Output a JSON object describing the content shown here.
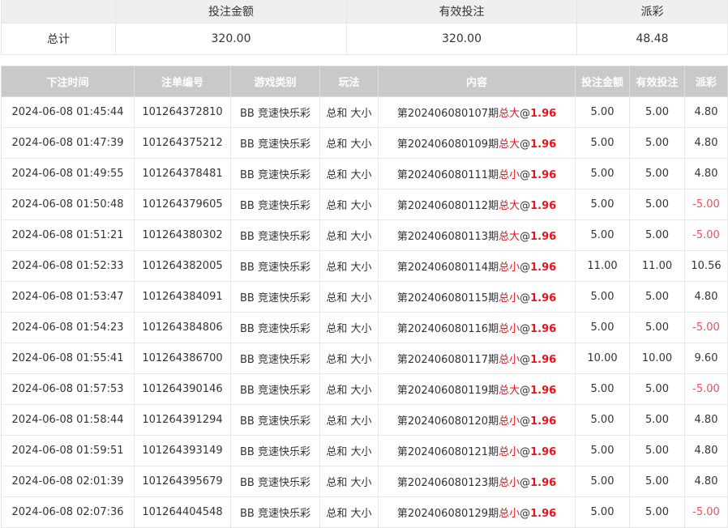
{
  "summary": {
    "headers": [
      "",
      "投注金额",
      "有效投注",
      "派彩"
    ],
    "total_label": "总计",
    "total_bet": "320.00",
    "total_valid": "320.00",
    "total_payout": "48.48"
  },
  "bets": {
    "headers": [
      "下注时间",
      "注单编号",
      "游戏类别",
      "玩法",
      "内容",
      "投注金额",
      "有效投注",
      "派彩"
    ],
    "colors": {
      "selection": "#e8131b",
      "negative_payout": "#e8505b",
      "header_bg": "#c9c9c9"
    },
    "rows": [
      {
        "time": "2024-06-08 01:45:44",
        "id": "101264372810",
        "game": "BB 竞速快乐彩",
        "play": "总和 大小",
        "period": "第202406080107期",
        "pick": "总大",
        "at": "@",
        "odds": "1.96",
        "bet": "5.00",
        "valid": "5.00",
        "payout": "4.80",
        "negative": false
      },
      {
        "time": "2024-06-08 01:47:39",
        "id": "101264375212",
        "game": "BB 竞速快乐彩",
        "play": "总和 大小",
        "period": "第202406080109期",
        "pick": "总大",
        "at": "@",
        "odds": "1.96",
        "bet": "5.00",
        "valid": "5.00",
        "payout": "4.80",
        "negative": false
      },
      {
        "time": "2024-06-08 01:49:55",
        "id": "101264378481",
        "game": "BB 竞速快乐彩",
        "play": "总和 大小",
        "period": "第202406080111期",
        "pick": "总小",
        "at": "@",
        "odds": "1.96",
        "bet": "5.00",
        "valid": "5.00",
        "payout": "4.80",
        "negative": false
      },
      {
        "time": "2024-06-08 01:50:48",
        "id": "101264379605",
        "game": "BB 竞速快乐彩",
        "play": "总和 大小",
        "period": "第202406080112期",
        "pick": "总大",
        "at": "@",
        "odds": "1.96",
        "bet": "5.00",
        "valid": "5.00",
        "payout": "-5.00",
        "negative": true
      },
      {
        "time": "2024-06-08 01:51:21",
        "id": "101264380302",
        "game": "BB 竞速快乐彩",
        "play": "总和 大小",
        "period": "第202406080113期",
        "pick": "总大",
        "at": "@",
        "odds": "1.96",
        "bet": "5.00",
        "valid": "5.00",
        "payout": "-5.00",
        "negative": true
      },
      {
        "time": "2024-06-08 01:52:33",
        "id": "101264382005",
        "game": "BB 竞速快乐彩",
        "play": "总和 大小",
        "period": "第202406080114期",
        "pick": "总小",
        "at": "@",
        "odds": "1.96",
        "bet": "11.00",
        "valid": "11.00",
        "payout": "10.56",
        "negative": false
      },
      {
        "time": "2024-06-08 01:53:47",
        "id": "101264384091",
        "game": "BB 竞速快乐彩",
        "play": "总和 大小",
        "period": "第202406080115期",
        "pick": "总小",
        "at": "@",
        "odds": "1.96",
        "bet": "5.00",
        "valid": "5.00",
        "payout": "4.80",
        "negative": false
      },
      {
        "time": "2024-06-08 01:54:23",
        "id": "101264384806",
        "game": "BB 竞速快乐彩",
        "play": "总和 大小",
        "period": "第202406080116期",
        "pick": "总小",
        "at": "@",
        "odds": "1.96",
        "bet": "5.00",
        "valid": "5.00",
        "payout": "-5.00",
        "negative": true
      },
      {
        "time": "2024-06-08 01:55:41",
        "id": "101264386700",
        "game": "BB 竞速快乐彩",
        "play": "总和 大小",
        "period": "第202406080117期",
        "pick": "总小",
        "at": "@",
        "odds": "1.96",
        "bet": "10.00",
        "valid": "10.00",
        "payout": "9.60",
        "negative": false
      },
      {
        "time": "2024-06-08 01:57:53",
        "id": "101264390146",
        "game": "BB 竞速快乐彩",
        "play": "总和 大小",
        "period": "第202406080119期",
        "pick": "总大",
        "at": "@",
        "odds": "1.96",
        "bet": "5.00",
        "valid": "5.00",
        "payout": "-5.00",
        "negative": true
      },
      {
        "time": "2024-06-08 01:58:44",
        "id": "101264391294",
        "game": "BB 竞速快乐彩",
        "play": "总和 大小",
        "period": "第202406080120期",
        "pick": "总小",
        "at": "@",
        "odds": "1.96",
        "bet": "5.00",
        "valid": "5.00",
        "payout": "4.80",
        "negative": false
      },
      {
        "time": "2024-06-08 01:59:51",
        "id": "101264393149",
        "game": "BB 竞速快乐彩",
        "play": "总和 大小",
        "period": "第202406080121期",
        "pick": "总小",
        "at": "@",
        "odds": "1.96",
        "bet": "5.00",
        "valid": "5.00",
        "payout": "4.80",
        "negative": false
      },
      {
        "time": "2024-06-08 02:01:39",
        "id": "101264395679",
        "game": "BB 竞速快乐彩",
        "play": "总和 大小",
        "period": "第202406080123期",
        "pick": "总小",
        "at": "@",
        "odds": "1.96",
        "bet": "5.00",
        "valid": "5.00",
        "payout": "4.80",
        "negative": false
      },
      {
        "time": "2024-06-08 02:07:36",
        "id": "101264404548",
        "game": "BB 竞速快乐彩",
        "play": "总和 大小",
        "period": "第202406080129期",
        "pick": "总小",
        "at": "@",
        "odds": "1.96",
        "bet": "5.00",
        "valid": "5.00",
        "payout": "-5.00",
        "negative": true
      }
    ]
  }
}
